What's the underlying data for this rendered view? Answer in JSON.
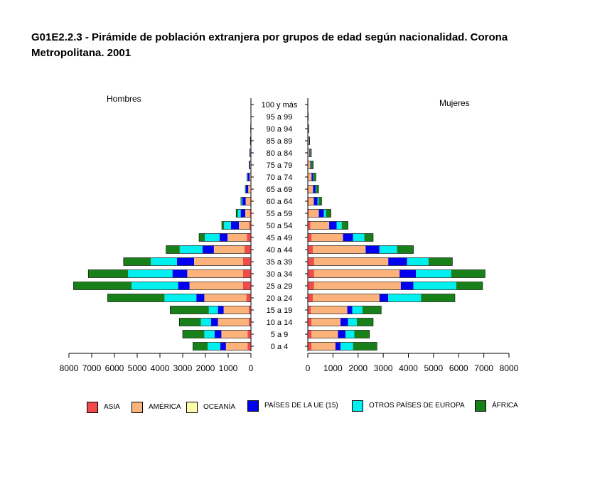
{
  "title_line1": "G01E2.2.3 - Pirámide de población extranjera por grupos de edad según nacionalidad. Corona",
  "title_line2": "Metropolitana. 2001",
  "left_label": "Hombres",
  "right_label": "Mujeres",
  "chart_data": {
    "type": "bar",
    "orientation": "horizontal-population-pyramid",
    "title": "G01E2.2.3 - Pirámide de población extranjera por grupos de edad según nacionalidad. Corona Metropolitana. 2001",
    "categories": [
      "0 a 4",
      "5 a 9",
      "10 a 14",
      "15 a 19",
      "20 a 24",
      "25 a 29",
      "30 a 34",
      "35 a 39",
      "40 a 44",
      "45 a 49",
      "50 a 54",
      "55 a 59",
      "60 a 64",
      "65 a 69",
      "70 a 74",
      "75 a 79",
      "80 a 84",
      "85 a 89",
      "90 a 94",
      "95 a 99",
      "100 y más"
    ],
    "left_axis_ticks": [
      "8000",
      "7000",
      "6000",
      "5000",
      "4000",
      "3000",
      "2000",
      "1000",
      "0"
    ],
    "right_axis_ticks": [
      "0",
      "1000",
      "2000",
      "3000",
      "4000",
      "5000",
      "6000",
      "7000",
      "8000"
    ],
    "xlim": [
      0,
      8000
    ],
    "stacked": true,
    "series_order": [
      "ASIA",
      "AMÉRICA",
      "OCEANÍA",
      "PAÍSES DE LA UE (15)",
      "OTROS PAÍSES DE EUROPA",
      "ÁFRICA"
    ],
    "colors": {
      "ASIA": "#f04a4a",
      "AMÉRICA": "#fcb27b",
      "OCEANÍA": "#fcfcab",
      "PAÍSES DE LA UE (15)": "#0000f0",
      "OTROS PAÍSES DE EUROPA": "#00f0f0",
      "ÁFRICA": "#188018"
    },
    "hombres": {
      "ASIA": [
        150,
        150,
        100,
        100,
        200,
        350,
        350,
        350,
        280,
        180,
        80,
        50,
        30,
        20,
        10,
        5,
        2,
        1,
        0,
        0,
        0
      ],
      "AMÉRICA": [
        950,
        1150,
        1350,
        1100,
        1850,
        2350,
        2450,
        2150,
        1350,
        850,
        450,
        200,
        200,
        100,
        50,
        30,
        20,
        10,
        5,
        0,
        0
      ],
      "OCEANÍA": [
        0,
        0,
        0,
        0,
        0,
        0,
        0,
        0,
        0,
        0,
        0,
        0,
        0,
        0,
        0,
        0,
        0,
        0,
        0,
        0,
        0
      ],
      "PAÍSES DE LA UE (15)": [
        250,
        300,
        300,
        250,
        350,
        500,
        650,
        750,
        500,
        350,
        350,
        200,
        150,
        100,
        80,
        30,
        20,
        10,
        5,
        2,
        1
      ],
      "OTROS PAÍSES DE EUROPA": [
        550,
        450,
        450,
        400,
        1400,
        2050,
        1950,
        1150,
        1000,
        650,
        300,
        120,
        40,
        20,
        20,
        10,
        5,
        2,
        1,
        0,
        0
      ],
      "ÁFRICA": [
        650,
        950,
        950,
        1700,
        2500,
        2550,
        1750,
        1200,
        600,
        250,
        100,
        80,
        20,
        10,
        10,
        5,
        5,
        2,
        1,
        1,
        0
      ]
    },
    "mujeres": {
      "ASIA": [
        150,
        150,
        150,
        120,
        200,
        250,
        250,
        250,
        200,
        150,
        100,
        40,
        40,
        30,
        20,
        10,
        5,
        2,
        1,
        1,
        0
      ],
      "AMÉRICA": [
        950,
        1050,
        1150,
        1450,
        2650,
        3450,
        3400,
        2950,
        2100,
        1250,
        750,
        400,
        200,
        180,
        130,
        90,
        60,
        30,
        15,
        5,
        2
      ],
      "OCEANÍA": [
        0,
        0,
        0,
        0,
        0,
        0,
        0,
        0,
        0,
        0,
        0,
        0,
        0,
        0,
        0,
        0,
        0,
        0,
        0,
        0,
        0
      ],
      "PAÍSES DE LA UE (15)": [
        200,
        300,
        300,
        200,
        350,
        500,
        650,
        750,
        550,
        400,
        300,
        200,
        150,
        100,
        60,
        30,
        20,
        10,
        5,
        2,
        1
      ],
      "OTROS PAÍSES DE EUROPA": [
        500,
        350,
        350,
        400,
        1300,
        1700,
        1400,
        850,
        700,
        450,
        200,
        80,
        40,
        20,
        10,
        5,
        5,
        2,
        1,
        0,
        0
      ],
      "ÁFRICA": [
        950,
        600,
        650,
        750,
        1350,
        1050,
        1350,
        950,
        650,
        350,
        250,
        200,
        120,
        100,
        100,
        80,
        50,
        30,
        20,
        10,
        5
      ]
    }
  }
}
